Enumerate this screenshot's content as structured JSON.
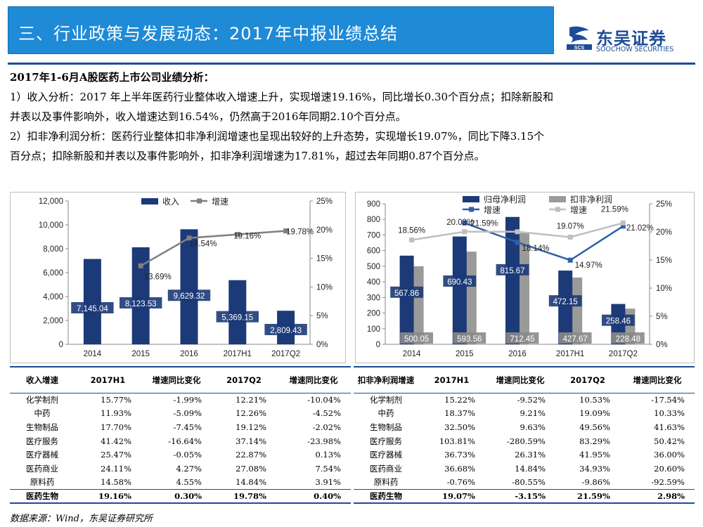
{
  "header": {
    "title": "三、行业政策与发展动态：2017年中报业绩总结"
  },
  "logo": {
    "name_cn": "东吴证券",
    "name_en": "SOOCHOW SECURITIES",
    "mark": "SCS",
    "brand_color": "#1c4c98"
  },
  "colors": {
    "header_bg": "#1f8ad6",
    "navy": "#1c3a78",
    "gray": "#9a9a9a",
    "line_gray": "#7f7f7f",
    "light_gray": "#bfbfbf",
    "blue_line": "#2f5fa8"
  },
  "text": {
    "subtitle": "2017年1-6月A股医药上市公司业绩分析：",
    "p1_line1": "1）收入分析：2017 年上半年医药行业整体收入增速上升，实现增速19.16%，同比增长0.30个百分点；扣除新股和",
    "p1_line2": "并表以及事件影响外，收入增速达到16.54%，仍然高于2016年同期2.10个百分点。",
    "p2_line1": "2）扣非净利润分析：医药行业整体扣非净利润增速也呈现出较好的上升态势，实现增长19.07%，同比下降3.15个",
    "p2_line2": "百分点；扣除新股和并表以及事件影响外，扣非净利润增速为17.81%，超过去年同期0.87个百分点。"
  },
  "chart_data": [
    {
      "type": "bar",
      "title": "",
      "categories": [
        "2014",
        "2015",
        "2016",
        "2017H1",
        "2017Q2"
      ],
      "series": [
        {
          "name": "收入",
          "kind": "bar",
          "axis": "left",
          "values": [
            7145.04,
            8123.53,
            9629.32,
            5369.15,
            2809.43
          ],
          "labels": [
            "7,145.04",
            "8,123.53",
            "9,629.32",
            "5,369.15",
            "2,809.43"
          ]
        },
        {
          "name": "增速",
          "kind": "line",
          "axis": "right",
          "values": [
            null,
            13.69,
            18.54,
            19.16,
            19.78
          ],
          "labels": [
            null,
            "13.69%",
            "18.54%",
            "19.16%",
            "19.78%"
          ]
        }
      ],
      "y_left": {
        "ticks": [
          "0",
          "2,000",
          "4,000",
          "6,000",
          "8,000",
          "10,000",
          "12,000"
        ],
        "ylim": [
          0,
          12000
        ]
      },
      "y_right": {
        "ticks": [
          "0%",
          "5%",
          "10%",
          "15%",
          "20%",
          "25%"
        ],
        "ylim": [
          0,
          25
        ]
      },
      "legend": [
        "收入",
        "增速"
      ]
    },
    {
      "type": "bar",
      "title": "",
      "categories": [
        "2014",
        "2015",
        "2016",
        "2017H1",
        "2017Q2"
      ],
      "series": [
        {
          "name": "归母净利润",
          "kind": "bar",
          "axis": "left",
          "values": [
            567.86,
            690.43,
            815.67,
            472.15,
            258.46
          ],
          "labels": [
            "567.86",
            "690.43",
            "815.67",
            "472.15",
            "258.46"
          ]
        },
        {
          "name": "扣非净利润",
          "kind": "bar",
          "axis": "left",
          "values": [
            500.05,
            593.56,
            712.45,
            427.67,
            228.48
          ],
          "labels": [
            "500.05",
            "593.56",
            "712.45",
            "427.67",
            "228.48"
          ]
        },
        {
          "name": "增速",
          "kind": "line",
          "axis": "right",
          "values": [
            null,
            21.59,
            18.14,
            14.97,
            21.02
          ],
          "labels": [
            null,
            "21.59%",
            "18.14%",
            "14.97%",
            "21.02%"
          ]
        },
        {
          "name": "增速",
          "kind": "line",
          "axis": "right",
          "values": [
            18.56,
            20.03,
            20.03,
            19.07,
            21.59
          ],
          "labels": [
            "18.56%",
            "20.03%",
            null,
            "19.07%",
            "21.59%"
          ]
        }
      ],
      "y_left": {
        "ticks": [
          "0",
          "100",
          "200",
          "300",
          "400",
          "500",
          "600",
          "700",
          "800",
          "900"
        ],
        "ylim": [
          0,
          900
        ]
      },
      "y_right": {
        "ticks": [
          "0%",
          "5%",
          "10%",
          "15%",
          "20%",
          "25%"
        ],
        "ylim": [
          0,
          25
        ]
      },
      "legend": [
        "归母净利润",
        "扣非净利润",
        "增速",
        "增速"
      ]
    }
  ],
  "table1": {
    "headers": [
      "收入增速",
      "2017H1",
      "增速同比变化",
      "2017Q2",
      "增速同比变化"
    ],
    "rows": [
      [
        "化学制剂",
        "15.77%",
        "-1.99%",
        "12.21%",
        "-10.04%"
      ],
      [
        "中药",
        "11.93%",
        "-5.09%",
        "12.26%",
        "-4.52%"
      ],
      [
        "生物制品",
        "17.70%",
        "-7.45%",
        "19.12%",
        "-2.02%"
      ],
      [
        "医疗服务",
        "41.42%",
        "-16.64%",
        "37.14%",
        "-23.98%"
      ],
      [
        "医疗器械",
        "25.47%",
        "-0.05%",
        "22.87%",
        "0.13%"
      ],
      [
        "医药商业",
        "24.11%",
        "4.27%",
        "27.08%",
        "7.54%"
      ],
      [
        "原料药",
        "14.58%",
        "4.55%",
        "14.84%",
        "3.91%"
      ]
    ],
    "total": [
      "医药生物",
      "19.16%",
      "0.30%",
      "19.78%",
      "0.40%"
    ]
  },
  "table2": {
    "headers": [
      "扣非净利润增速",
      "2017H1",
      "增速同比变化",
      "2017Q2",
      "增速同比变化"
    ],
    "rows": [
      [
        "化学制剂",
        "15.22%",
        "-9.52%",
        "10.53%",
        "-17.54%"
      ],
      [
        "中药",
        "18.37%",
        "9.21%",
        "19.09%",
        "10.33%"
      ],
      [
        "生物制品",
        "32.50%",
        "9.63%",
        "49.56%",
        "41.63%"
      ],
      [
        "医疗服务",
        "103.81%",
        "-280.59%",
        "83.29%",
        "50.42%"
      ],
      [
        "医疗器械",
        "36.73%",
        "26.31%",
        "41.95%",
        "36.00%"
      ],
      [
        "医药商业",
        "36.68%",
        "14.84%",
        "34.93%",
        "20.60%"
      ],
      [
        "原料药",
        "-0.76%",
        "-80.55%",
        "-9.86%",
        "-92.59%"
      ]
    ],
    "total": [
      "医药生物",
      "19.07%",
      "-3.15%",
      "21.59%",
      "2.98%"
    ]
  },
  "source": "数据来源：Wind，东吴证券研究所"
}
